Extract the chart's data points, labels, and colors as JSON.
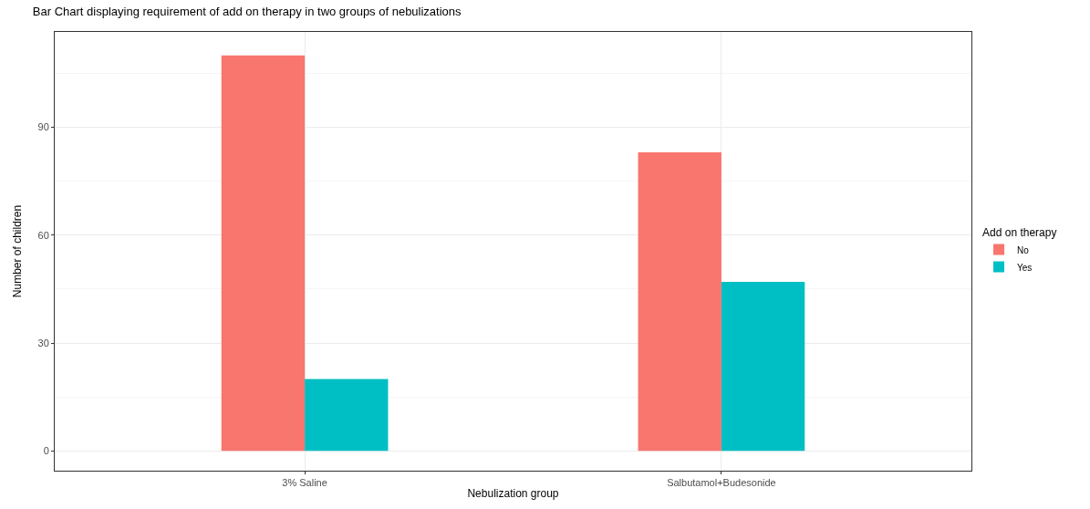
{
  "chart_data": {
    "type": "bar",
    "title": "Bar Chart displaying requirement of add on therapy in two groups of nebulizations",
    "xlabel": "Nebulization group",
    "ylabel": "Number of children",
    "legend_title": "Add on therapy",
    "categories": [
      "3% Saline",
      "Salbutamol+Budesonide"
    ],
    "series": [
      {
        "name": "No",
        "color": "#f8766d",
        "values": [
          110,
          83
        ]
      },
      {
        "name": "Yes",
        "color": "#00bfc4",
        "values": [
          20,
          47
        ]
      }
    ],
    "ylim": [
      -5.5,
      116.5
    ],
    "yticks": [
      0,
      30,
      60,
      90
    ],
    "grid": true,
    "legend": "right"
  }
}
